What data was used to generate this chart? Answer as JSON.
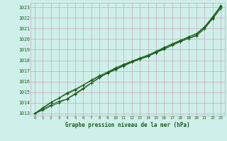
{
  "bg_color": "#cff0ea",
  "grid_color": "#c8a8b8",
  "line_color": "#1a5c1a",
  "marker_color": "#1a5c1a",
  "xlabel": "Graphe pression niveau de la mer (hPa)",
  "ylim": [
    1012.8,
    1023.4
  ],
  "xlim": [
    -0.5,
    23.5
  ],
  "yticks": [
    1013,
    1014,
    1015,
    1016,
    1017,
    1018,
    1019,
    1020,
    1021,
    1022,
    1023
  ],
  "xticks": [
    0,
    1,
    2,
    3,
    4,
    5,
    6,
    7,
    8,
    9,
    10,
    11,
    12,
    13,
    14,
    15,
    16,
    17,
    18,
    19,
    20,
    21,
    22,
    23
  ],
  "series": [
    [
      1013.0,
      1013.4,
      1013.8,
      1014.15,
      1014.35,
      1014.8,
      1015.3,
      1015.85,
      1016.35,
      1016.8,
      1017.15,
      1017.5,
      1017.82,
      1018.1,
      1018.35,
      1018.72,
      1019.2,
      1019.5,
      1019.82,
      1020.2,
      1020.5,
      1021.15,
      1022.1,
      1023.1
    ],
    [
      1013.0,
      1013.55,
      1014.05,
      1014.45,
      1014.85,
      1015.2,
      1015.65,
      1016.15,
      1016.55,
      1016.9,
      1017.3,
      1017.62,
      1017.92,
      1018.22,
      1018.5,
      1018.85,
      1019.2,
      1019.55,
      1019.88,
      1020.18,
      1020.5,
      1021.1,
      1021.88,
      1022.85
    ],
    [
      1013.0,
      1013.5,
      1014.0,
      1014.45,
      1014.95,
      1015.28,
      1015.68,
      1016.08,
      1016.48,
      1016.78,
      1017.12,
      1017.45,
      1017.82,
      1018.12,
      1018.42,
      1018.72,
      1019.02,
      1019.42,
      1019.75,
      1020.05,
      1020.28,
      1020.95,
      1021.92,
      1023.15
    ],
    [
      1013.0,
      1013.3,
      1013.7,
      1014.0,
      1014.38,
      1014.88,
      1015.38,
      1015.88,
      1016.38,
      1016.82,
      1017.22,
      1017.55,
      1017.88,
      1018.18,
      1018.38,
      1018.78,
      1019.1,
      1019.4,
      1019.75,
      1020.05,
      1020.38,
      1021.08,
      1021.98,
      1023.0
    ]
  ]
}
